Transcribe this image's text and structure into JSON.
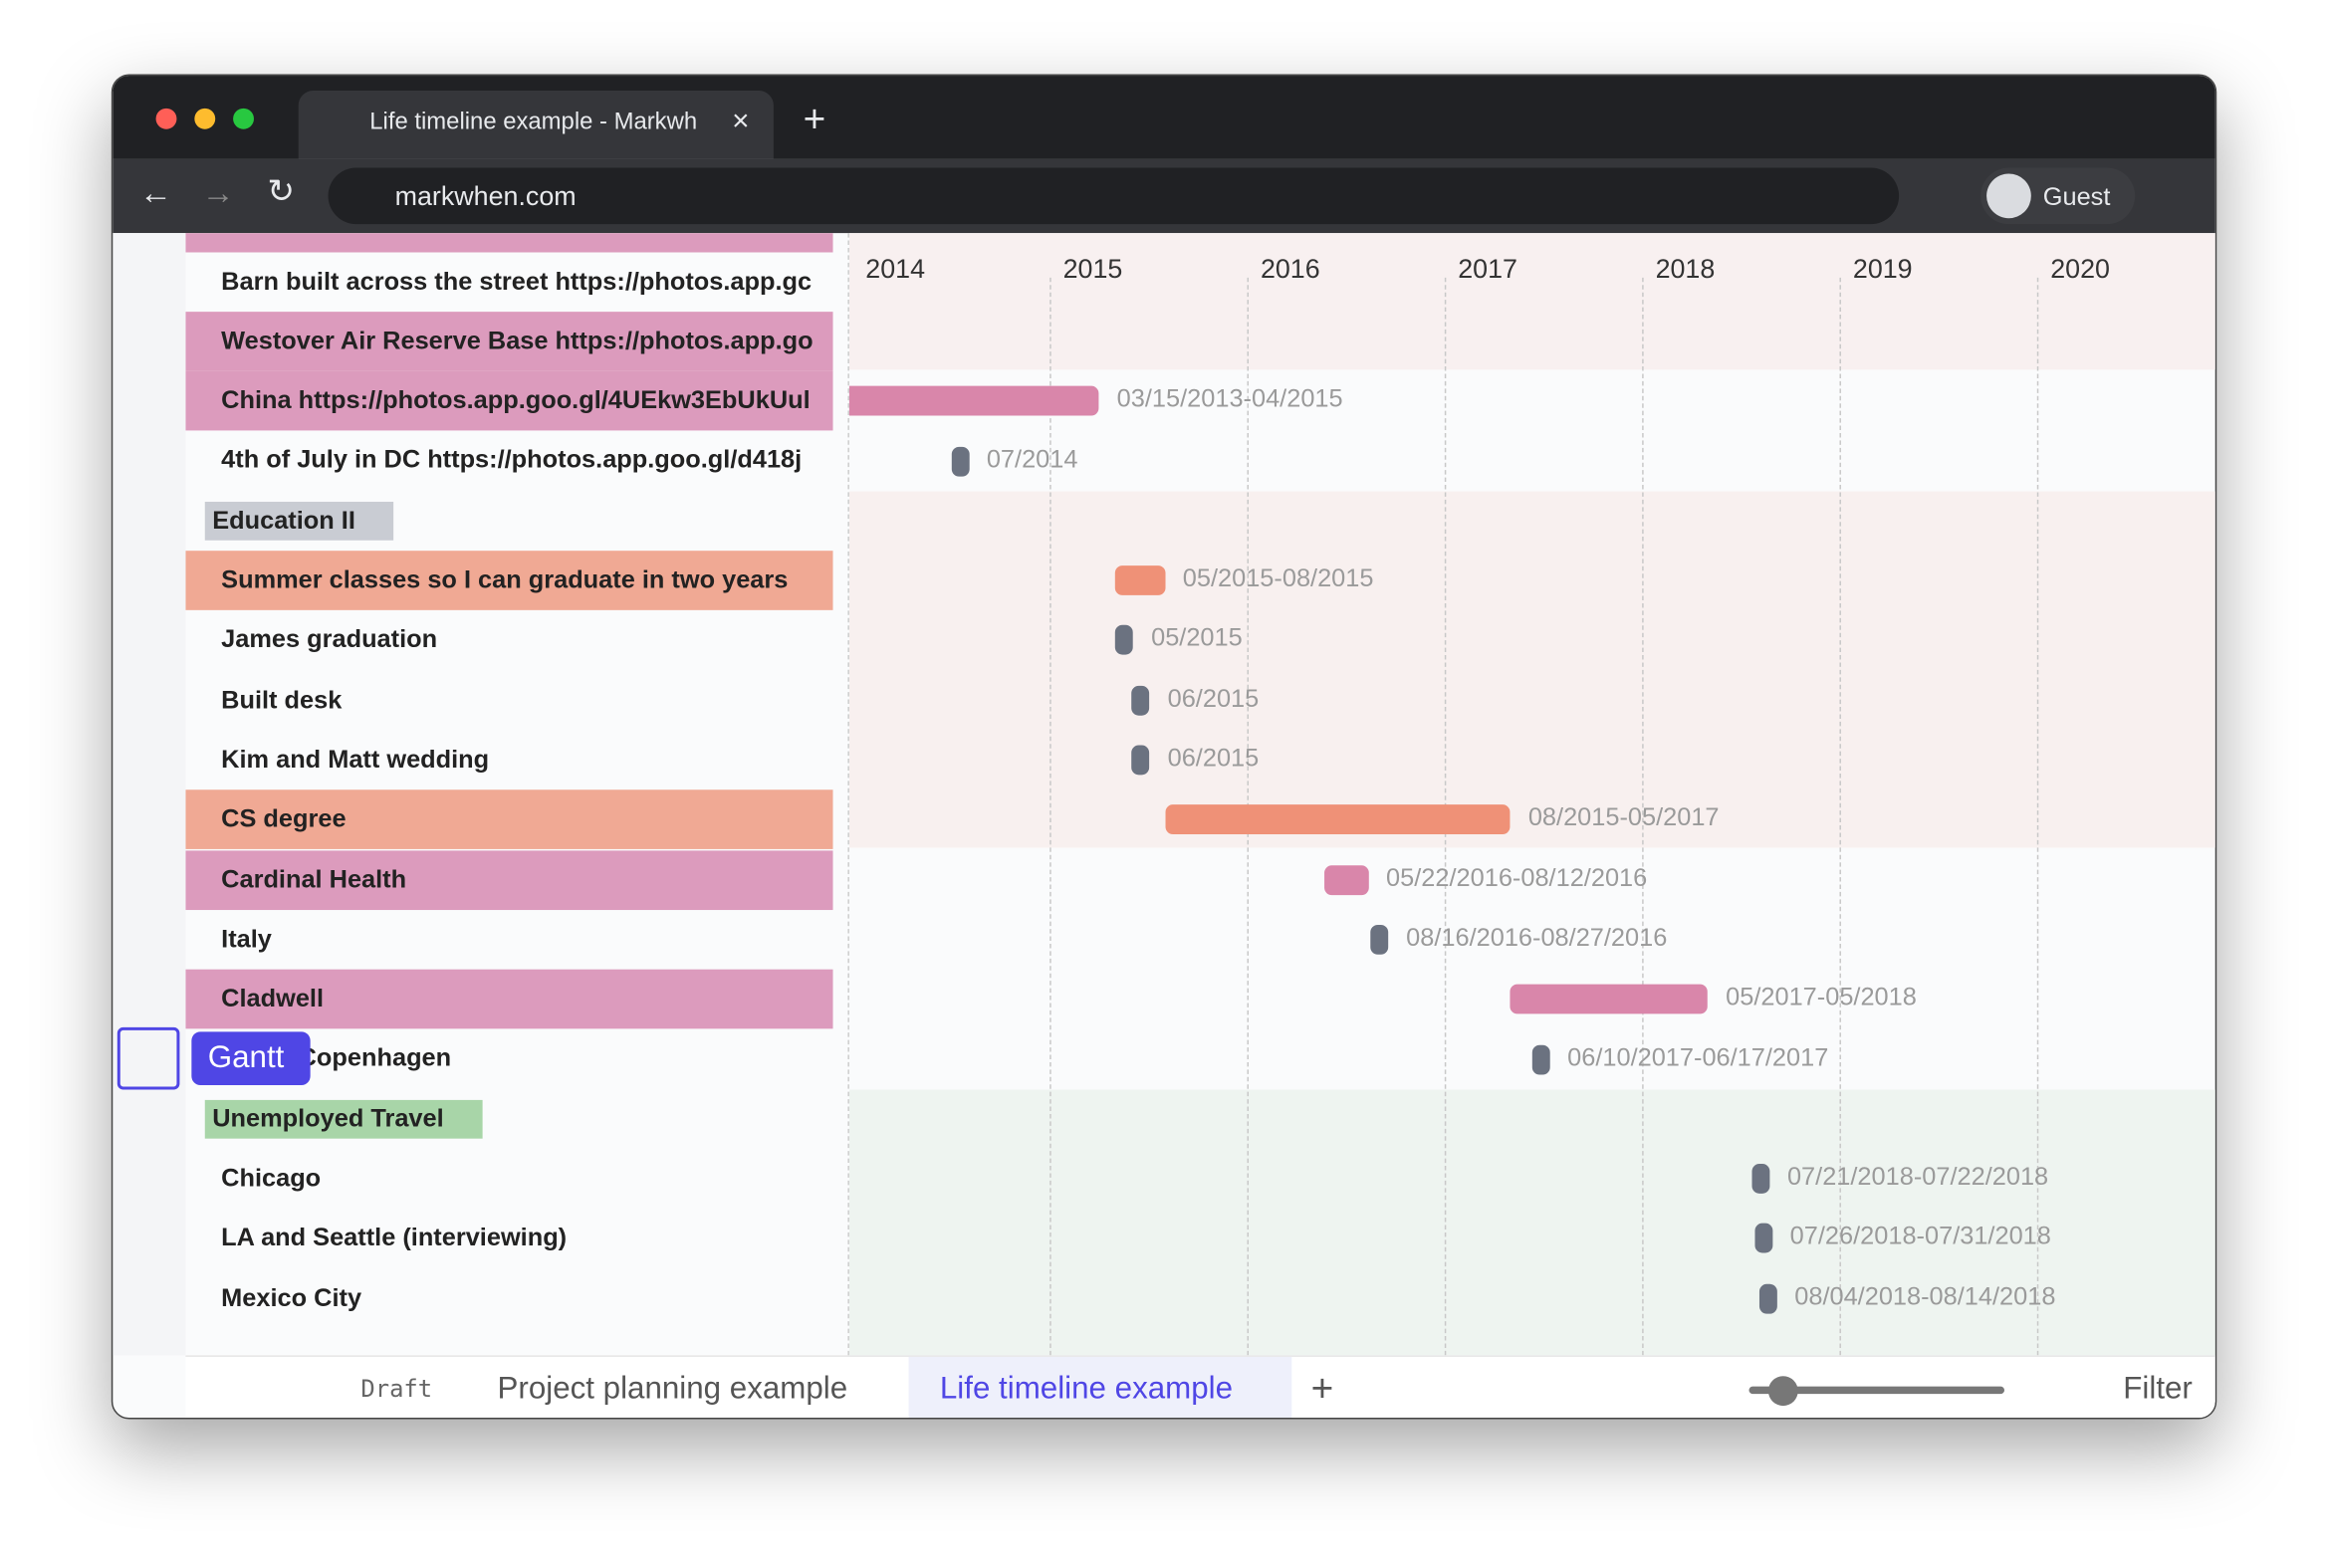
{
  "browser": {
    "tab_title": "Life timeline example - Markwh",
    "url": "markwhen.com",
    "profile": "Guest"
  },
  "timeline": {
    "years": [
      "2014",
      "2015",
      "2016",
      "2017",
      "2018",
      "2019",
      "2020"
    ],
    "rows": [
      {
        "label": "Barn built across the street https://photos.app.gc",
        "style": "plain",
        "date": null
      },
      {
        "label": "Westover Air Reserve Base https://photos.app.go",
        "style": "pink",
        "date": null
      },
      {
        "label": "China https://photos.app.goo.gl/4UEkw3EbUkUul",
        "style": "pink",
        "date": "03/15/2013-04/2015"
      },
      {
        "label": "4th of July in DC https://photos.app.goo.gl/d418j",
        "style": "plain",
        "date": "07/2014"
      },
      {
        "label": "Education II",
        "style": "group-gray",
        "date": null
      },
      {
        "label": "Summer classes so I can graduate in two years",
        "style": "salmon",
        "date": "05/2015-08/2015"
      },
      {
        "label": "James graduation",
        "style": "plain",
        "date": "05/2015"
      },
      {
        "label": "Built desk",
        "style": "plain",
        "date": "06/2015"
      },
      {
        "label": "Kim and Matt wedding",
        "style": "plain",
        "date": "06/2015"
      },
      {
        "label": "CS degree",
        "style": "salmon",
        "date": "08/2015-05/2017"
      },
      {
        "label": "Cardinal Health",
        "style": "pink",
        "date": "05/22/2016-08/12/2016"
      },
      {
        "label": "Italy",
        "style": "plain",
        "date": "08/16/2016-08/27/2016"
      },
      {
        "label": "Cladwell",
        "style": "pink",
        "date": "05/2017-05/2018"
      },
      {
        "label": "gue & Copenhagen",
        "style": "plain",
        "date": "06/10/2017-06/17/2017"
      },
      {
        "label": "Unemployed Travel",
        "style": "group-green",
        "date": null
      },
      {
        "label": "Chicago",
        "style": "plain",
        "date": "07/21/2018-07/22/2018"
      },
      {
        "label": "LA and Seattle (interviewing)",
        "style": "plain",
        "date": "07/26/2018-07/31/2018"
      },
      {
        "label": "Mexico City",
        "style": "plain",
        "date": "08/04/2018-08/14/2018"
      }
    ]
  },
  "tooltip": "Gantt",
  "footer": {
    "draft": "Draft",
    "tabs": [
      "Project planning example",
      "Life timeline example"
    ],
    "filter": "Filter"
  }
}
